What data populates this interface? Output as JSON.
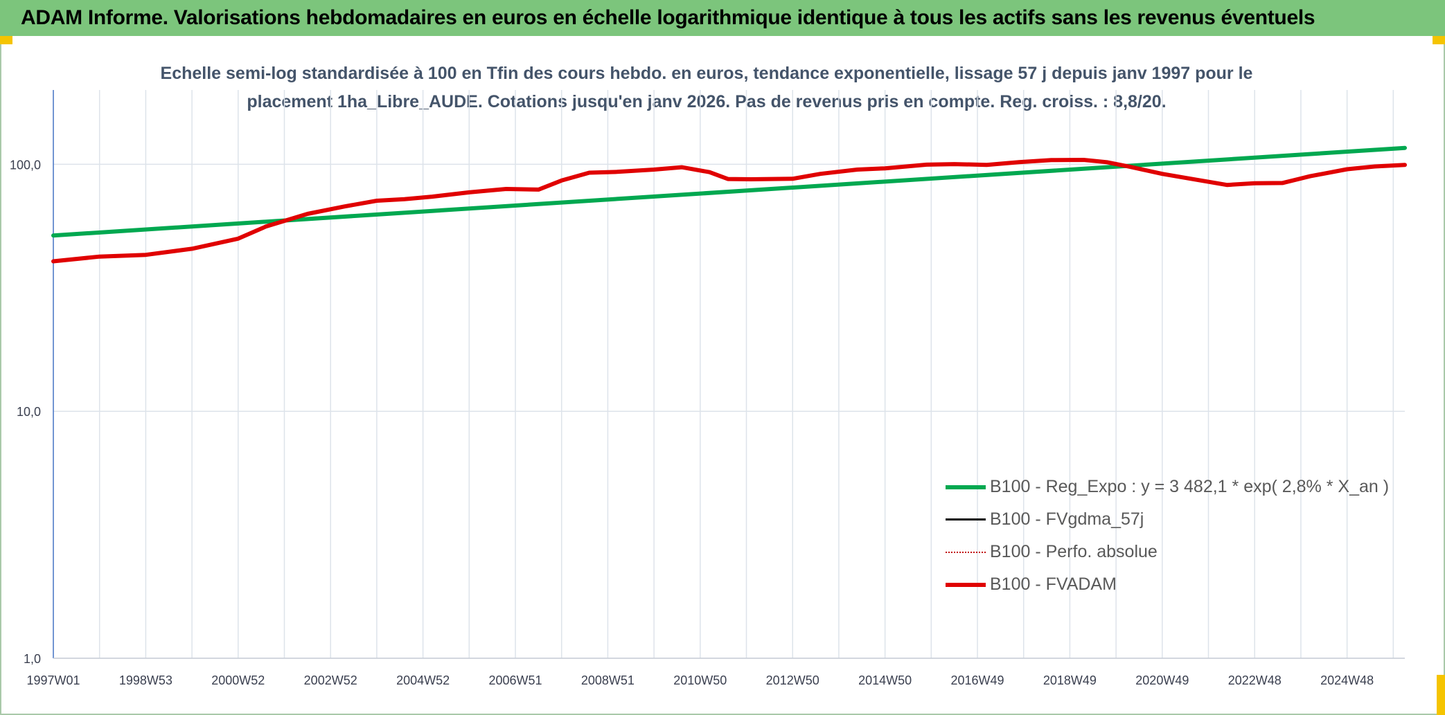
{
  "banner": {
    "title": "ADAM Informe. Valorisations hebdomadaires en euros en échelle logarithmique identique à tous les actifs sans les revenus éventuels"
  },
  "colors": {
    "banner_bg": "#7cc57c",
    "corner": "#f5c400",
    "reg": "#00a850",
    "fvgdma": "#000000",
    "perfo": "#c00000",
    "fvadam": "#e00000"
  },
  "chart_data": {
    "type": "line",
    "title": "Echelle semi-log standardisée à 100 en Tfin des cours hebdo. en euros, tendance exponentielle, lissage 57 j depuis janv 1997 pour le placement 1ha_Libre_AUDE. Cotations jusqu'en janv 2026. Pas de revenus pris en compte. Reg. croiss. : 8,8/20.",
    "y_scale": "log",
    "ylim": [
      1,
      200
    ],
    "y_ticks": [
      1,
      10,
      100
    ],
    "y_tick_labels": [
      "1,0",
      "10,0",
      "100,0"
    ],
    "xlim": [
      1997.0,
      2026.25
    ],
    "x_tick_labels": [
      "1997W01",
      "1998W53",
      "2000W52",
      "2002W52",
      "2004W52",
      "2006W51",
      "2008W51",
      "2010W50",
      "2012W50",
      "2014W50",
      "2016W49",
      "2018W49",
      "2020W49",
      "2022W48",
      "2024W48"
    ],
    "x_tick_years": [
      1997.0,
      1999.0,
      2001.0,
      2003.0,
      2005.0,
      2007.0,
      2009.0,
      2011.0,
      2013.0,
      2015.0,
      2017.0,
      2019.0,
      2021.0,
      2023.0,
      2025.0
    ],
    "legend_position": "bottom-right",
    "series": [
      {
        "name": "B100 - Reg_Expo : y = 3 482,1 * exp( 2,8% *  X_an )",
        "style": "solid-thick",
        "color": "#00a850",
        "x": [
          1997.0,
          2026.25
        ],
        "y": [
          51.5,
          116.5
        ]
      },
      {
        "name": "B100 - FVgdma_57j",
        "style": "solid-thin",
        "color": "#000000",
        "x": [],
        "y": []
      },
      {
        "name": "B100 - Perfo. absolue",
        "style": "dotted",
        "color": "#c00000",
        "x": [],
        "y": []
      },
      {
        "name": "B100 - FVADAM",
        "style": "solid-thick",
        "color": "#e00000",
        "x": [
          1997.0,
          1998.0,
          1999.0,
          2000.0,
          2001.0,
          2001.6,
          2002.5,
          2003.3,
          2004.0,
          2004.6,
          2005.2,
          2006.0,
          2006.8,
          2007.5,
          2008.0,
          2008.6,
          2009.2,
          2010.0,
          2010.6,
          2011.2,
          2011.6,
          2012.1,
          2013.0,
          2013.6,
          2014.4,
          2015.0,
          2015.9,
          2016.5,
          2017.2,
          2017.9,
          2018.6,
          2019.3,
          2019.8,
          2020.3,
          2021.0,
          2021.6,
          2022.4,
          2023.0,
          2023.6,
          2024.2,
          2025.0,
          2025.6,
          2026.25
        ],
        "y": [
          40.5,
          42.3,
          43.0,
          45.5,
          50.0,
          56.0,
          63.0,
          67.5,
          71.2,
          72.3,
          74.0,
          77.0,
          79.5,
          79.0,
          86.0,
          92.5,
          93.2,
          95.2,
          97.3,
          93.0,
          87.2,
          87.0,
          87.4,
          91.5,
          95.2,
          96.3,
          99.7,
          100.2,
          99.5,
          102.0,
          104.0,
          104.2,
          102.0,
          97.8,
          91.5,
          87.5,
          82.5,
          83.8,
          84.0,
          89.5,
          95.5,
          98.0,
          99.5
        ]
      }
    ]
  }
}
